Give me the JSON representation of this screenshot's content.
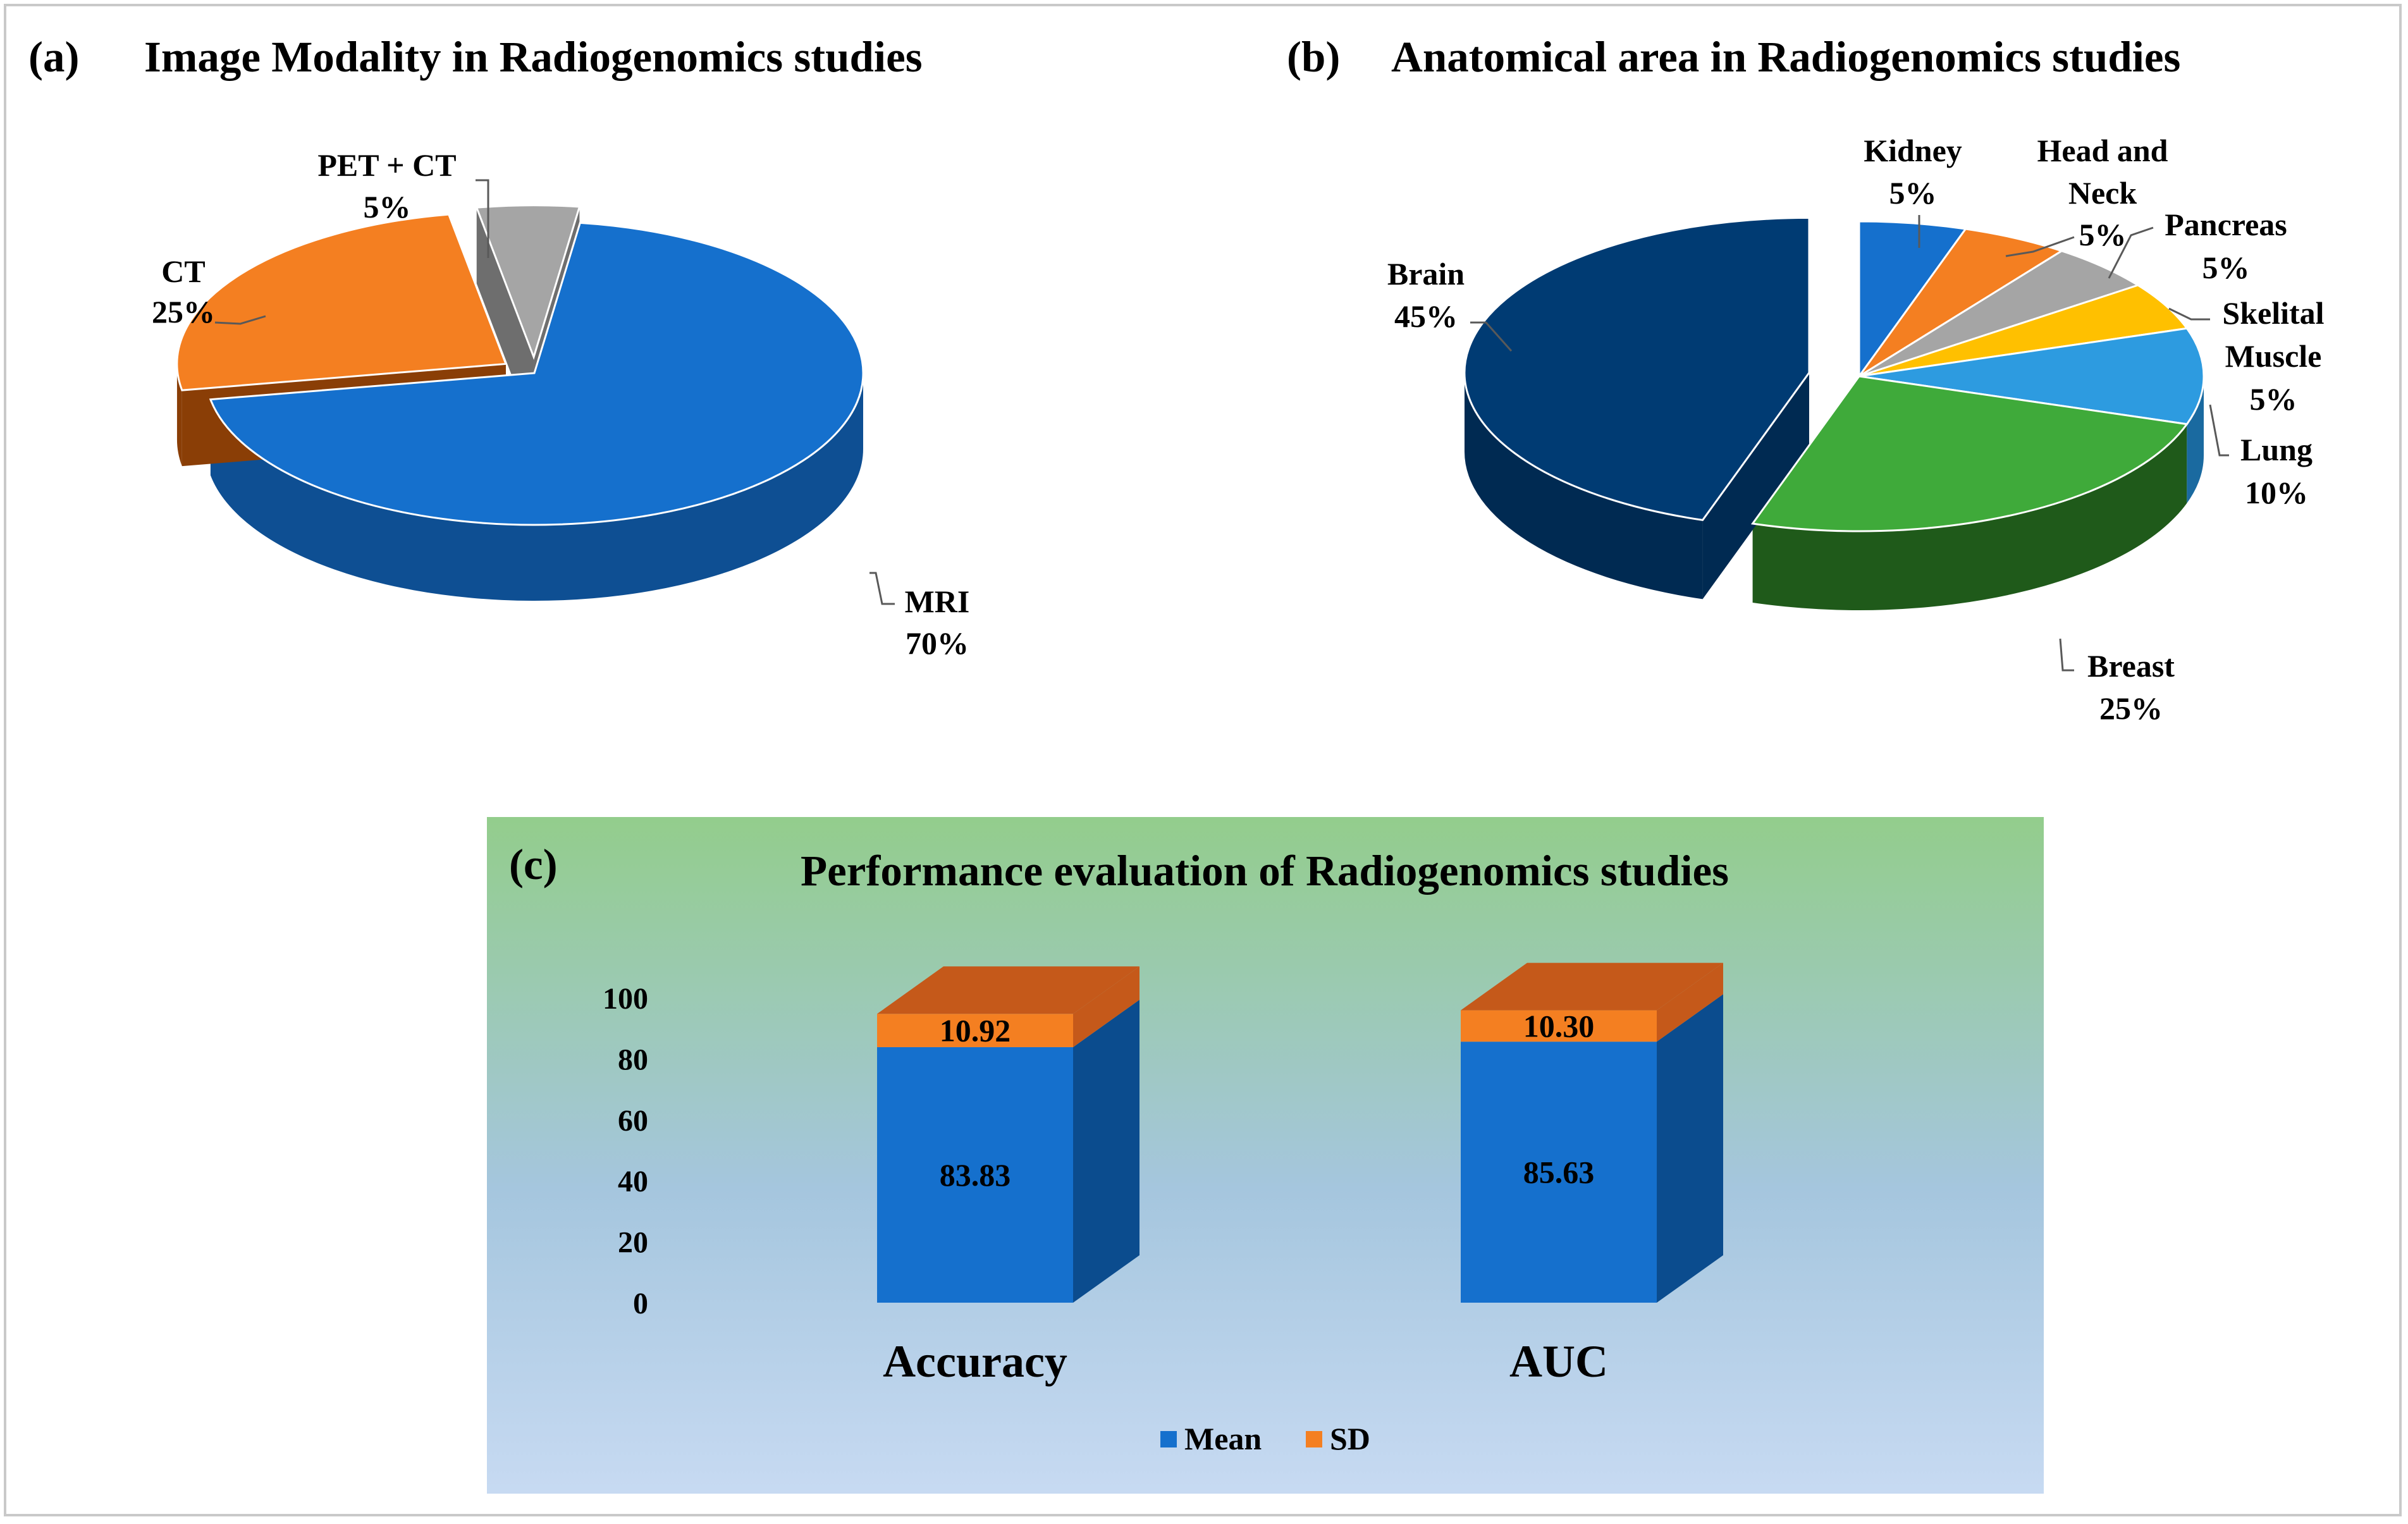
{
  "chart_data": [
    {
      "panel": "(a)",
      "type": "pie",
      "title": "Image Modality in Radiogenomics studies",
      "slices": [
        {
          "label": "MRI",
          "value": 70,
          "pct_label": "70%",
          "color": "#1570CD",
          "side": "#0E4F93"
        },
        {
          "label": "CT",
          "value": 25,
          "pct_label": "25%",
          "color": "#F47F21",
          "side": "#8A3E06"
        },
        {
          "label": "PET + CT",
          "value": 5,
          "pct_label": "5%",
          "color": "#A5A5A5",
          "side": "#6E6E6E"
        }
      ]
    },
    {
      "panel": "(b)",
      "type": "pie",
      "title": "Anatomical area in Radiogenomics studies",
      "slices": [
        {
          "label": "Kidney",
          "value": 5,
          "pct_label": "5%",
          "color": "#1570CD",
          "side": "#0E4F93"
        },
        {
          "label": "Head and Neck",
          "value": 5,
          "pct_label": "5%",
          "color": "#F47F21",
          "side": "#8A3E06"
        },
        {
          "label": "Pancreas",
          "value": 5,
          "pct_label": "5%",
          "color": "#A5A5A5",
          "side": "#6E6E6E"
        },
        {
          "label": "Skelital Muscle",
          "value": 5,
          "pct_label": "5%",
          "color": "#FFC000",
          "side": "#B08600"
        },
        {
          "label": "Lung",
          "value": 10,
          "pct_label": "10%",
          "color": "#2D9BE0",
          "side": "#1A6AA0"
        },
        {
          "label": "Breast",
          "value": 25,
          "pct_label": "25%",
          "color": "#3FAA3A",
          "side": "#1F5A1A"
        },
        {
          "label": "Brain",
          "value": 45,
          "pct_label": "45%",
          "color": "#003B73",
          "side": "#002A52"
        }
      ]
    },
    {
      "panel": "(c)",
      "type": "bar",
      "stacked": true,
      "title": "Performance evaluation of Radiogenomics studies",
      "categories": [
        "Accuracy",
        "AUC"
      ],
      "series": [
        {
          "name": "Mean",
          "values": [
            83.83,
            85.63
          ],
          "color": "#1570CD",
          "side": "#0B4C8E"
        },
        {
          "name": "SD",
          "values": [
            10.92,
            10.3
          ],
          "color": "#F47F21",
          "side": "#C5591A"
        }
      ],
      "value_labels": [
        [
          "83.83",
          "85.63"
        ],
        [
          "10.92",
          "10.30"
        ]
      ],
      "ylim": [
        0,
        100
      ],
      "yticks": [
        "0",
        "20",
        "40",
        "60",
        "80",
        "100"
      ],
      "legend": "bottom-center"
    }
  ]
}
